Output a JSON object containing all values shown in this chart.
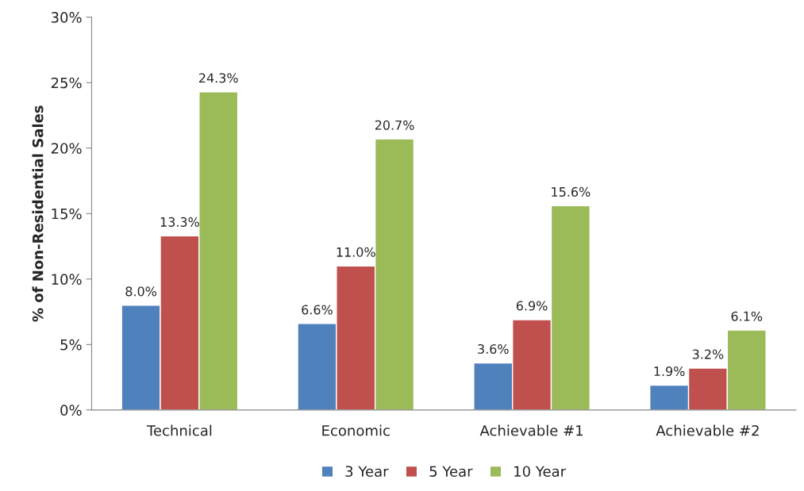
{
  "chart_data": {
    "type": "bar",
    "ylabel": "% of Non-Residential Sales",
    "categories": [
      "Technical",
      "Economic",
      "Achievable #1",
      "Achievable #2"
    ],
    "series": [
      {
        "name": "3 Year",
        "color": "#4f81bd",
        "values": [
          8.0,
          6.6,
          3.6,
          1.9
        ],
        "value_labels": [
          "8.0%",
          "6.6%",
          "3.6%",
          "1.9%"
        ]
      },
      {
        "name": "5 Year",
        "color": "#c0504d",
        "values": [
          13.3,
          11.0,
          6.9,
          3.2
        ],
        "value_labels": [
          "13.3%",
          "11.0%",
          "6.9%",
          "3.2%"
        ]
      },
      {
        "name": "10 Year",
        "color": "#9bbb59",
        "values": [
          24.3,
          20.7,
          15.6,
          6.1
        ],
        "value_labels": [
          "24.3%",
          "20.7%",
          "15.6%",
          "6.1%"
        ]
      }
    ],
    "ylim": [
      0,
      30
    ],
    "yticks": [
      {
        "value": 0,
        "label": "0%"
      },
      {
        "value": 5,
        "label": "5%"
      },
      {
        "value": 10,
        "label": "10%"
      },
      {
        "value": 15,
        "label": "15%"
      },
      {
        "value": 20,
        "label": "20%"
      },
      {
        "value": 25,
        "label": "25%"
      },
      {
        "value": 30,
        "label": "30%"
      }
    ],
    "grid": false,
    "legend": "bottom"
  }
}
